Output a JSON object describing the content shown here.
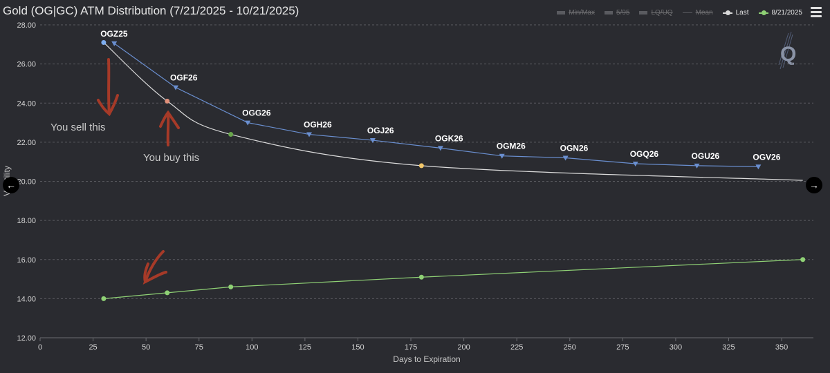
{
  "title": "Gold (OG|GC) ATM Distribution (7/21/2025 - 10/21/2025)",
  "legend": [
    {
      "label": "Min/Max",
      "state": "off"
    },
    {
      "label": "5/95",
      "state": "off"
    },
    {
      "label": "LQ/UQ",
      "state": "off"
    },
    {
      "label": "Mean",
      "state": "off"
    },
    {
      "label": "Last",
      "state": "on",
      "color": "#d9d9d9"
    },
    {
      "label": "8/21/2025",
      "state": "on",
      "color": "#8fd175"
    }
  ],
  "icons": {
    "menu": "hamburger-menu-icon",
    "prev": "arrow-left-icon",
    "next": "arrow-right-icon",
    "logo": "q-logo-icon"
  },
  "nav": {
    "prev": "←",
    "next": "→"
  },
  "logo_text": "Q",
  "colors": {
    "background": "#2a2b30",
    "last": "#dcdcdc",
    "aug": "#8fd175",
    "contracts": "#6a8fd0",
    "annotation": "#a63a28"
  },
  "annotations": {
    "sell": "You sell this",
    "buy": "You buy this"
  },
  "chart_data": {
    "type": "line",
    "xlabel": "Days to Expiration",
    "ylabel": "Volatility",
    "xlim": [
      0,
      365
    ],
    "ylim": [
      12,
      28
    ],
    "x_ticks": [
      0,
      25,
      50,
      75,
      100,
      125,
      150,
      175,
      200,
      225,
      250,
      275,
      300,
      325,
      350
    ],
    "y_ticks": [
      "12.00",
      "14.00",
      "16.00",
      "18.00",
      "20.00",
      "22.00",
      "24.00",
      "26.00",
      "28.00"
    ],
    "grid": true,
    "series": [
      {
        "name": "Last",
        "style": "smooth",
        "x": [
          30,
          60,
          90,
          180,
          360
        ],
        "y": [
          27.1,
          24.1,
          22.4,
          20.8,
          20.05
        ],
        "marker_colors": [
          "#7eaef0",
          "#e0907a",
          "#69a64c",
          "#f2c76a",
          null
        ]
      },
      {
        "name": "8/21/2025",
        "x": [
          30,
          60,
          90,
          180,
          360
        ],
        "y": [
          14.0,
          14.3,
          14.6,
          15.1,
          16.0
        ]
      },
      {
        "name": "contracts",
        "x": [
          35,
          64,
          98,
          127,
          157,
          189,
          218,
          248,
          281,
          310,
          339
        ],
        "y": [
          27.05,
          24.8,
          23.0,
          22.4,
          22.1,
          21.7,
          21.3,
          21.2,
          20.9,
          20.8,
          20.75
        ],
        "labels": [
          "OGZ25",
          "OGF26",
          "OGG26",
          "OGH26",
          "OGJ26",
          "OGK26",
          "OGM26",
          "OGN26",
          "OGQ26",
          "OGU26",
          "OGV26"
        ]
      }
    ]
  }
}
